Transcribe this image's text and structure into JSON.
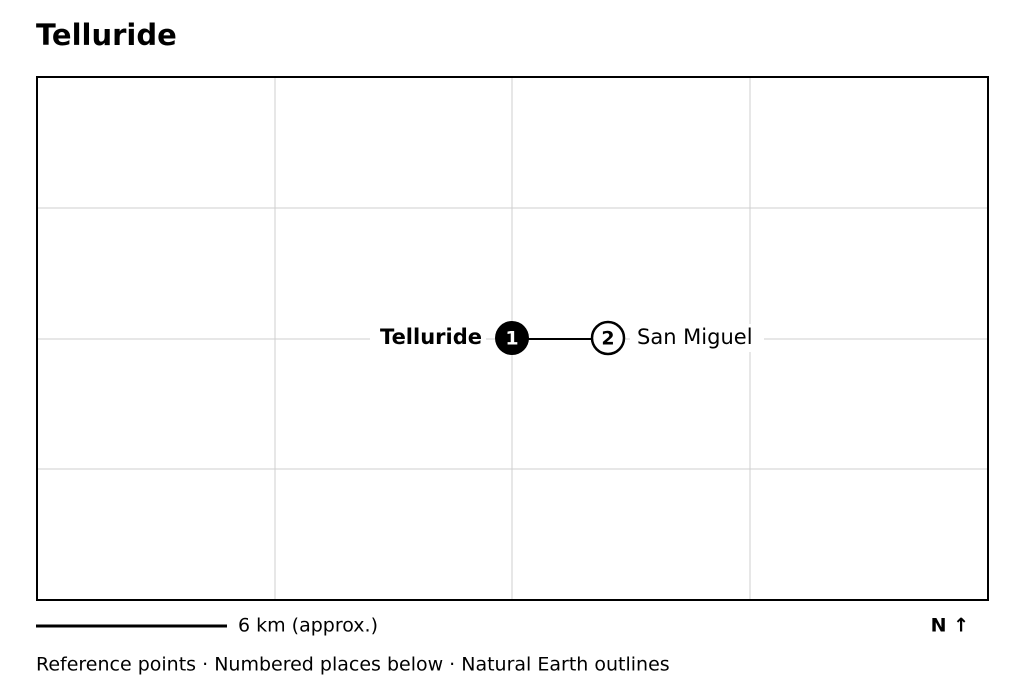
{
  "title": "Telluride",
  "places": [
    {
      "number": "1",
      "label": "Telluride"
    },
    {
      "number": "2",
      "label": "San Miguel"
    }
  ],
  "scale_label": "6 km (approx.)",
  "north_label": "N ↑",
  "footer": "Reference points · Numbered places below · Natural Earth outlines"
}
